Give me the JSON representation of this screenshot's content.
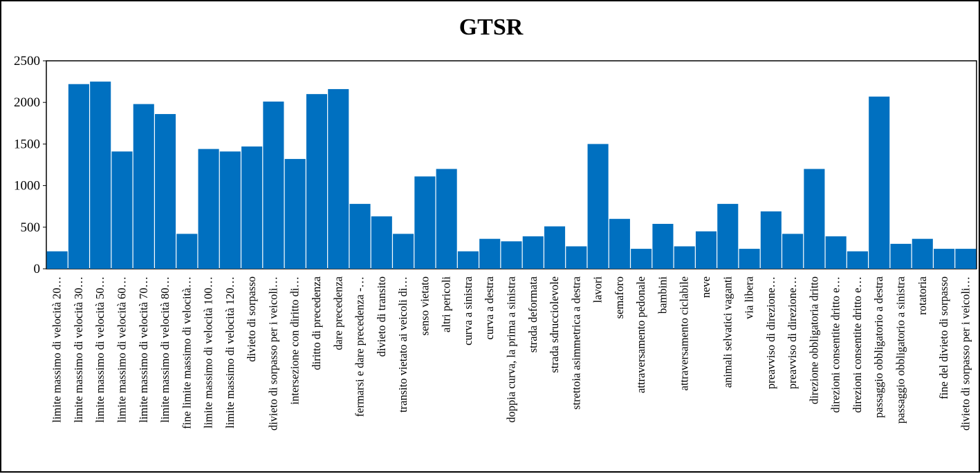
{
  "chart_data": {
    "type": "bar",
    "title": "GTSR",
    "xlabel": "",
    "ylabel": "",
    "ylim": [
      0,
      2500
    ],
    "yticks": [
      "0",
      "500",
      "1000",
      "1500",
      "2000",
      "2500"
    ],
    "grid": false,
    "legend": "none",
    "bar_color": "#0070C0",
    "categories": [
      "limite massimo di velocità 20…",
      "limite massimo di velocità 30…",
      "limite massimo di velocità 50…",
      "limite massimo di velocità 60…",
      "limite massimo di velocità 70…",
      "limite massimo di velocità 80…",
      "fine limite massimo di velocità…",
      "limite massimo di velocità 100…",
      "limite massimo di velocità 120…",
      "divieto di sorpasso",
      "divieto di sorpasso per i veicoli…",
      "intersezione con diritto di…",
      "diritto di precedenza",
      "dare precedenza",
      "fermarsi e dare precedenza -…",
      "divieto di transito",
      "transito vietato ai veicoli di…",
      "senso vietato",
      "altri pericoli",
      "curva a sinistra",
      "curva a destra",
      "doppia curva, la prima a sinistra",
      "strada deformata",
      "strada sdrucciolevole",
      "strettoia asimmetrica a destra",
      "lavori",
      "semaforo",
      "attraversamento pedonale",
      "bambini",
      "attraversamento ciclabile",
      "neve",
      "animali selvatici vaganti",
      "via libera",
      "preavviso di direzione…",
      "preavviso di direzione…",
      "direzione obbligatoria dritto",
      "direzioni consentite dritto e…",
      "direzioni consentite dritto e…",
      "passaggio obbligatorio a destra",
      "passaggio obbligatorio a sinistra",
      "rotatoria",
      "fine del divieto di sorpasso",
      "divieto di sorpasso per i veicoli…"
    ],
    "values": [
      210,
      2220,
      2250,
      1410,
      1980,
      1860,
      420,
      1440,
      1410,
      1470,
      2010,
      1320,
      2100,
      2160,
      780,
      630,
      420,
      1110,
      1200,
      210,
      360,
      330,
      390,
      510,
      270,
      1500,
      600,
      240,
      540,
      270,
      450,
      780,
      240,
      690,
      420,
      1200,
      390,
      210,
      2070,
      300,
      360,
      240,
      240
    ]
  }
}
